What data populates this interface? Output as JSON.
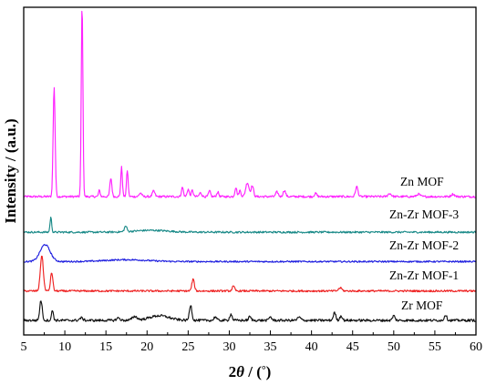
{
  "chart_data": {
    "type": "line",
    "xlabel": "2θ / (°)",
    "xlabel_main": "2",
    "xlabel_theta": "θ",
    "xlabel_unit": " / (",
    "xlabel_degree": "°",
    "xlabel_close": ")",
    "ylabel": "Intensity / (a.u.)",
    "xlim": [
      5,
      60
    ],
    "xticks": [
      5,
      10,
      15,
      20,
      25,
      30,
      35,
      40,
      45,
      50,
      55,
      60
    ],
    "yticks_shown": false,
    "grid": false,
    "legend": "labels beside curves",
    "series": [
      {
        "name": "Zn MOF",
        "color": "#ff22ff",
        "baseline": 4.0,
        "noise": 0.035,
        "peaks": [
          [
            8.7,
            3.55,
            0.12
          ],
          [
            12.1,
            6.25,
            0.1
          ],
          [
            14.2,
            0.2,
            0.1
          ],
          [
            15.6,
            0.6,
            0.12
          ],
          [
            16.9,
            0.95,
            0.1
          ],
          [
            17.6,
            0.85,
            0.1
          ],
          [
            19.2,
            0.12,
            0.15
          ],
          [
            20.8,
            0.18,
            0.15
          ],
          [
            24.3,
            0.3,
            0.12
          ],
          [
            25.0,
            0.24,
            0.12
          ],
          [
            25.5,
            0.2,
            0.12
          ],
          [
            26.5,
            0.12,
            0.15
          ],
          [
            27.6,
            0.18,
            0.12
          ],
          [
            28.6,
            0.15,
            0.12
          ],
          [
            30.8,
            0.3,
            0.12
          ],
          [
            31.3,
            0.2,
            0.12
          ],
          [
            32.2,
            0.45,
            0.2
          ],
          [
            32.8,
            0.35,
            0.15
          ],
          [
            35.8,
            0.15,
            0.15
          ],
          [
            36.7,
            0.2,
            0.15
          ],
          [
            40.5,
            0.1,
            0.15
          ],
          [
            45.5,
            0.32,
            0.15
          ],
          [
            49.5,
            0.1,
            0.2
          ],
          [
            53.0,
            0.08,
            0.2
          ],
          [
            57.2,
            0.08,
            0.2
          ]
        ]
      },
      {
        "name": "Zn-Zr MOF-3",
        "color": "#1a8a88",
        "baseline": 2.85,
        "noise": 0.03,
        "peaks": [
          [
            8.3,
            0.48,
            0.1
          ],
          [
            17.4,
            0.18,
            0.15
          ],
          [
            20.5,
            0.06,
            2.0
          ]
        ]
      },
      {
        "name": "Zn-Zr MOF-2",
        "color": "#1f1fdf",
        "baseline": 1.9,
        "noise": 0.025,
        "peaks": [
          [
            7.6,
            0.55,
            0.6
          ],
          [
            17.5,
            0.06,
            2.5
          ]
        ]
      },
      {
        "name": "Zn-Zr MOF-1",
        "color": "#ee2222",
        "baseline": 0.95,
        "noise": 0.03,
        "peaks": [
          [
            7.2,
            1.15,
            0.18
          ],
          [
            8.4,
            0.6,
            0.14
          ],
          [
            25.6,
            0.38,
            0.15
          ],
          [
            30.5,
            0.15,
            0.15
          ],
          [
            43.5,
            0.1,
            0.2
          ]
        ]
      },
      {
        "name": "Zr MOF",
        "color": "#111111",
        "baseline": 0.0,
        "noise": 0.04,
        "peaks": [
          [
            7.1,
            0.65,
            0.15
          ],
          [
            8.5,
            0.32,
            0.12
          ],
          [
            12.0,
            0.08,
            0.2
          ],
          [
            16.5,
            0.08,
            0.2
          ],
          [
            18.5,
            0.12,
            0.3
          ],
          [
            21.5,
            0.15,
            1.2
          ],
          [
            25.3,
            0.5,
            0.15
          ],
          [
            28.3,
            0.12,
            0.15
          ],
          [
            30.2,
            0.2,
            0.15
          ],
          [
            32.5,
            0.12,
            0.15
          ],
          [
            35.0,
            0.12,
            0.15
          ],
          [
            38.5,
            0.1,
            0.2
          ],
          [
            42.8,
            0.25,
            0.15
          ],
          [
            43.6,
            0.15,
            0.15
          ],
          [
            50.0,
            0.15,
            0.15
          ],
          [
            56.3,
            0.18,
            0.15
          ]
        ]
      }
    ]
  }
}
